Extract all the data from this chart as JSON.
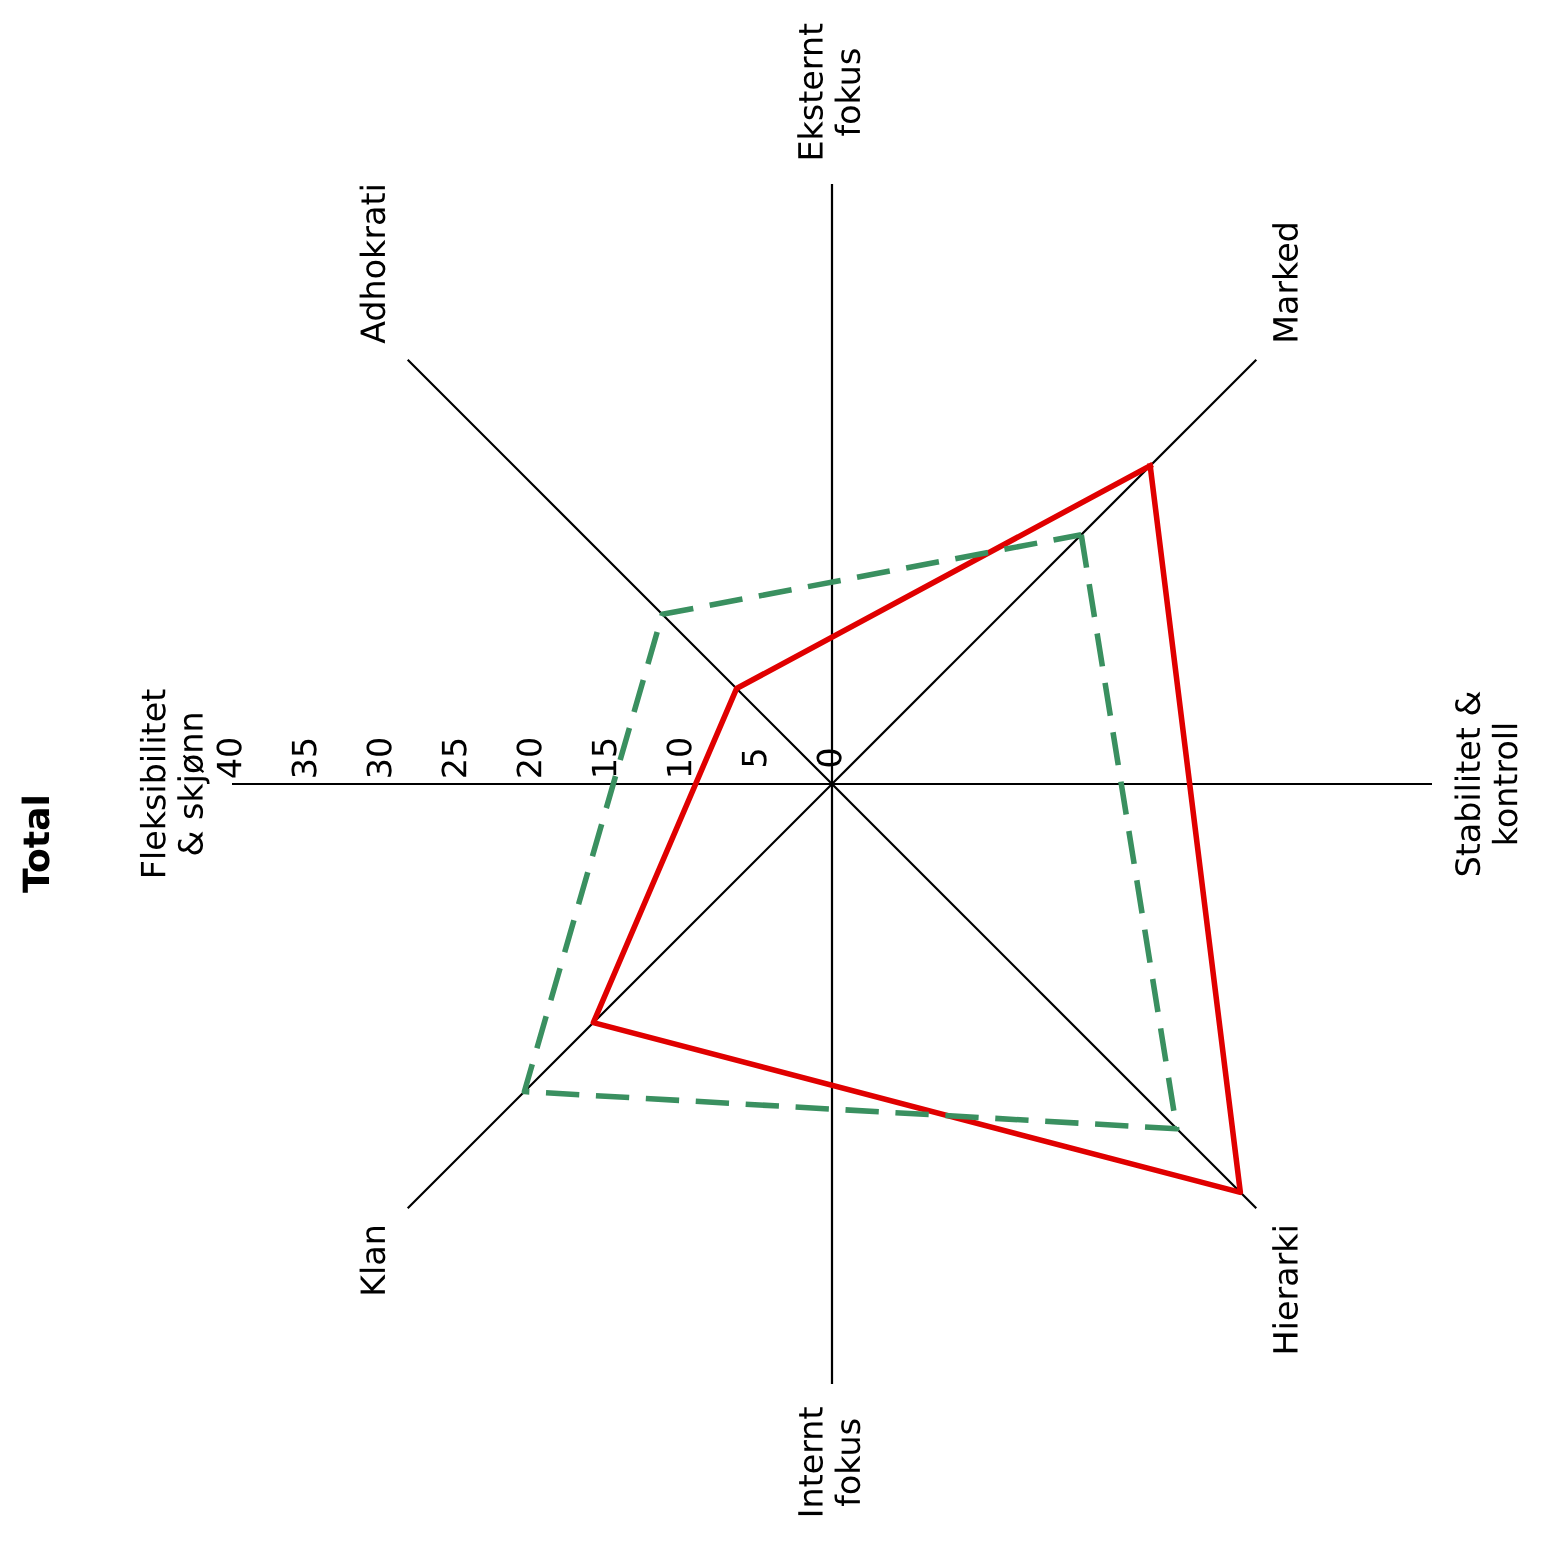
{
  "chart_data": {
    "type": "radar",
    "title": "Total",
    "categories": [
      "Eksternt\nfokus",
      "Marked",
      "Stabilitet &\nkontroll",
      "Hierarki",
      "Internt\nfokus",
      "Klan",
      "Fleksibilitet\n& skjønn",
      "Adhokrati"
    ],
    "series": [
      {
        "color": "#e00000",
        "line_style": "solid",
        "values": [
          null,
          30,
          null,
          38.5,
          null,
          22.5,
          null,
          9
        ]
      },
      {
        "color": "#3a9060",
        "line_style": "dashed",
        "values": [
          null,
          23.5,
          null,
          32.5,
          null,
          29,
          null,
          16
        ]
      }
    ],
    "ylim": [
      0,
      40
    ],
    "yticks": [
      0,
      5,
      10,
      15,
      20,
      25,
      30,
      35,
      40
    ],
    "grid": true
  }
}
